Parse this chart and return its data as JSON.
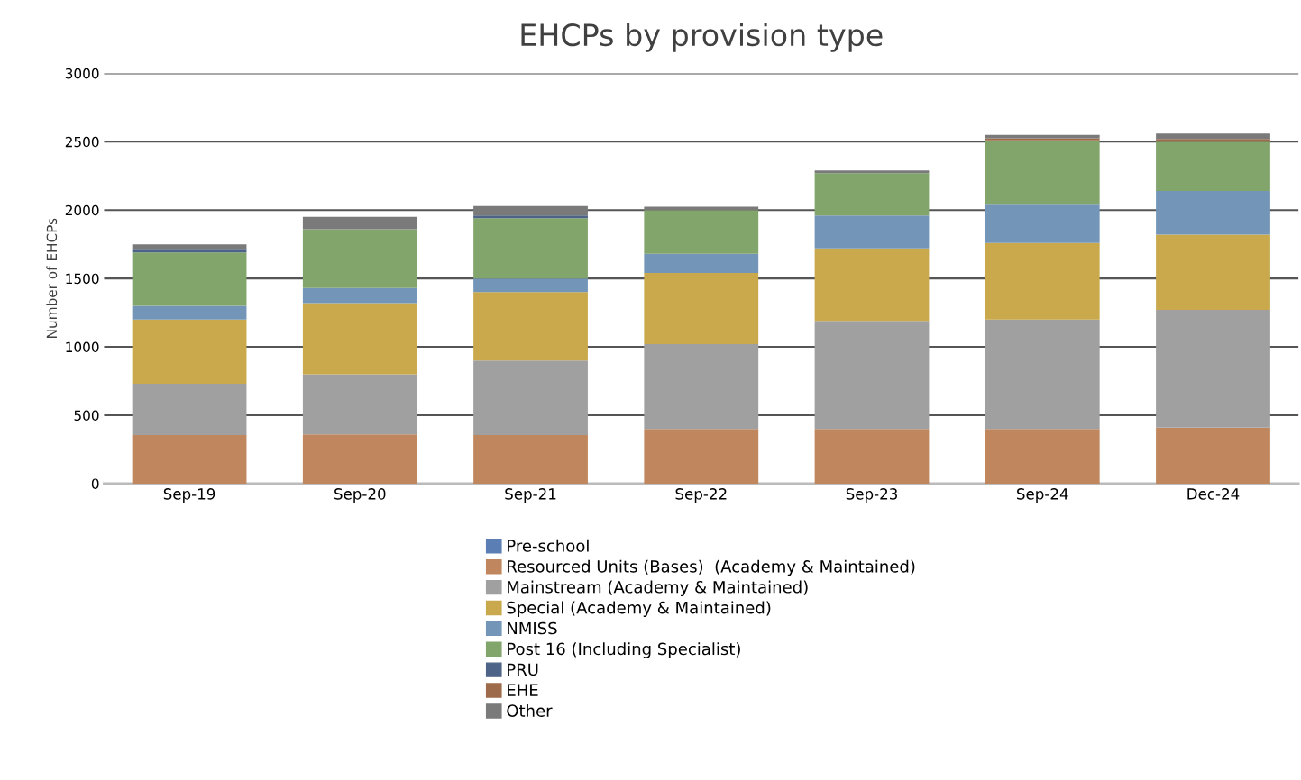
{
  "chart_data": {
    "type": "bar",
    "title": "EHCPs by provision type",
    "ylabel": "Number of EHCPs",
    "stacked": true,
    "categories": [
      "Sep-19",
      "Sep-20",
      "Sep-21",
      "Sep-22",
      "Sep-23",
      "Sep-24",
      "Dec-24"
    ],
    "series": [
      {
        "name": "Pre-school",
        "color": "#5b7fb5",
        "values": [
          0,
          0,
          0,
          0,
          0,
          0,
          0
        ]
      },
      {
        "name": "Resourced Units (Bases)  (Academy & Maintained)",
        "color": "#c0875e",
        "values": [
          355,
          360,
          355,
          400,
          400,
          400,
          410
        ]
      },
      {
        "name": "Mainstream (Academy & Maintained)",
        "color": "#a0a0a0",
        "values": [
          375,
          440,
          545,
          620,
          790,
          800,
          860
        ]
      },
      {
        "name": "Special (Academy & Maintained)",
        "color": "#c9a94b",
        "values": [
          470,
          520,
          500,
          520,
          530,
          560,
          550
        ]
      },
      {
        "name": "NMISS",
        "color": "#7396b8",
        "values": [
          100,
          110,
          100,
          140,
          240,
          280,
          320
        ]
      },
      {
        "name": "Post 16 (Including Specialist)",
        "color": "#82a56c",
        "values": [
          390,
          430,
          440,
          320,
          310,
          470,
          360
        ]
      },
      {
        "name": "PRU",
        "color": "#4d6488",
        "values": [
          20,
          0,
          20,
          0,
          0,
          0,
          0
        ]
      },
      {
        "name": "EHE",
        "color": "#9e6b4a",
        "values": [
          0,
          0,
          0,
          0,
          0,
          15,
          20
        ]
      },
      {
        "name": "Other",
        "color": "#7a7a7a",
        "values": [
          40,
          90,
          70,
          25,
          20,
          25,
          40
        ]
      }
    ],
    "ylim": [
      0,
      3000
    ],
    "yticks": [
      0,
      500,
      1000,
      1500,
      2000,
      2500,
      3000
    ],
    "grid": "y",
    "legend": "bottom"
  }
}
